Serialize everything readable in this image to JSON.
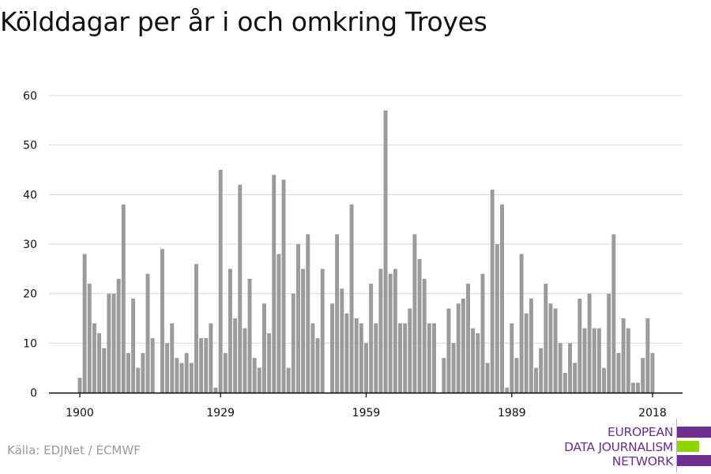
{
  "title": "Kölddagar per år i och omkring Troyes",
  "source": "Källa: EDJNet / ECMWF",
  "logo": {
    "lines": [
      "EUROPEAN",
      "DATA JOURNALISM",
      "NETWORK"
    ],
    "text_color": "#6d2e8f",
    "bar_colors": [
      "#6d2e8f",
      "#8fd400",
      "#6d2e8f"
    ]
  },
  "colors": {
    "bar": "#9b9b9b",
    "grid": "#d9d9d9",
    "axis": "#000000",
    "tick_text": "#111111"
  },
  "chart_data": {
    "type": "bar",
    "title": "Kölddagar per år i och omkring Troyes",
    "xlabel": "",
    "ylabel": "",
    "x_ticks": [
      1900,
      1929,
      1959,
      1989,
      2018
    ],
    "y_ticks": [
      0,
      10,
      20,
      30,
      40,
      50,
      60
    ],
    "ylim": [
      0,
      60
    ],
    "xlim": [
      1900,
      2018
    ],
    "grid": true,
    "x": [
      1900,
      1901,
      1902,
      1903,
      1904,
      1905,
      1906,
      1907,
      1908,
      1909,
      1910,
      1911,
      1912,
      1913,
      1914,
      1915,
      1916,
      1917,
      1918,
      1919,
      1920,
      1921,
      1922,
      1923,
      1924,
      1925,
      1926,
      1927,
      1928,
      1929,
      1930,
      1931,
      1932,
      1933,
      1934,
      1935,
      1936,
      1937,
      1938,
      1939,
      1940,
      1941,
      1942,
      1943,
      1944,
      1945,
      1946,
      1947,
      1948,
      1949,
      1950,
      1951,
      1952,
      1953,
      1954,
      1955,
      1956,
      1957,
      1958,
      1959,
      1960,
      1961,
      1962,
      1963,
      1964,
      1965,
      1966,
      1967,
      1968,
      1969,
      1970,
      1971,
      1972,
      1973,
      1974,
      1975,
      1976,
      1977,
      1978,
      1979,
      1980,
      1981,
      1982,
      1983,
      1984,
      1985,
      1986,
      1987,
      1988,
      1989,
      1990,
      1991,
      1992,
      1993,
      1994,
      1995,
      1996,
      1997,
      1998,
      1999,
      2000,
      2001,
      2002,
      2003,
      2004,
      2005,
      2006,
      2007,
      2008,
      2009,
      2010,
      2011,
      2012,
      2013,
      2014,
      2015,
      2016,
      2017,
      2018
    ],
    "values": [
      3,
      28,
      22,
      14,
      12,
      9,
      20,
      20,
      23,
      38,
      8,
      19,
      5,
      8,
      24,
      11,
      0,
      29,
      10,
      14,
      7,
      6,
      8,
      6,
      26,
      11,
      11,
      14,
      1,
      45,
      8,
      25,
      15,
      42,
      13,
      23,
      7,
      5,
      18,
      12,
      44,
      28,
      43,
      5,
      20,
      30,
      25,
      32,
      14,
      11,
      25,
      0,
      18,
      32,
      21,
      16,
      38,
      15,
      14,
      10,
      22,
      14,
      25,
      57,
      24,
      25,
      14,
      14,
      17,
      32,
      27,
      23,
      14,
      14,
      0,
      7,
      17,
      10,
      18,
      19,
      22,
      13,
      12,
      24,
      6,
      41,
      30,
      38,
      1,
      14,
      7,
      28,
      16,
      19,
      5,
      9,
      22,
      18,
      17,
      10,
      4,
      10,
      6,
      19,
      13,
      20,
      13,
      13,
      5,
      20,
      32,
      8,
      15,
      13,
      2,
      2,
      7,
      15,
      8
    ]
  }
}
